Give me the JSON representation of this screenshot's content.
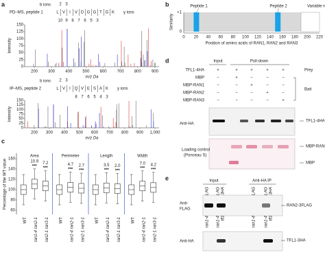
{
  "a": {
    "label": "a",
    "spectra": [
      {
        "title": "PD–MS, peptide 1",
        "b_ions_label": "b ions",
        "b_ions": [
          2,
          3
        ],
        "peptide": [
          "L",
          "V",
          "I",
          "V",
          "D",
          "G",
          "G",
          "T",
          "G",
          "K"
        ],
        "y_ions_label": "y ions",
        "y_ions": [
          10,
          9,
          8,
          7,
          6,
          5,
          3
        ],
        "ylabel": "Intensity",
        "yticks": [
          150,
          125,
          100,
          75,
          50,
          25,
          0
        ],
        "xticks": [
          200,
          300,
          400,
          500,
          600,
          700,
          800,
          900
        ],
        "xlabel": "m/z Da"
      },
      {
        "title": "IP–MS, peptide 2",
        "b_ions_label": "b ions",
        "b_ions": [
          2,
          3
        ],
        "peptide": [
          "L",
          "V",
          "I",
          "Q",
          "V",
          "E",
          "S",
          "A",
          "K"
        ],
        "y_ions_label": "y ions",
        "y_ions": [
          8,
          7,
          6,
          5,
          4,
          3
        ],
        "ylabel": "Intensity",
        "yticks": [
          150,
          125,
          100,
          75,
          50,
          25,
          0
        ],
        "xticks": [
          200,
          300,
          400,
          500,
          600,
          700,
          800,
          900,
          "1,000"
        ],
        "xlabel": "m/z Da"
      }
    ]
  },
  "b": {
    "label": "b",
    "ylabel": "Similarity",
    "yticks": [
      "+1",
      0
    ],
    "peptide1": "Peptide 1",
    "peptide2": "Peptide 2",
    "variable": "Variable region",
    "xticks": [
      0,
      20,
      40,
      60,
      80,
      100,
      120,
      140,
      160,
      180,
      200,
      220
    ],
    "xlabel": "Position of amino acids of RAN1, RAN2 and RAN3"
  },
  "c": {
    "label": "c",
    "ylabel": "Percentage of the WT value",
    "yticks": [
      160,
      140,
      120,
      100,
      80,
      60
    ],
    "groups": [
      {
        "name": "Area",
        "values": [
          "10.9",
          "7.2"
        ]
      },
      {
        "name": "Perimeter",
        "values": [
          "4.7",
          "2.7"
        ]
      },
      {
        "name": "Length",
        "values": [
          "3.5",
          "2.0"
        ]
      },
      {
        "name": "Width",
        "values": [
          "7.0",
          "4.2"
        ]
      }
    ],
    "stars": "***",
    "genotypes": [
      "WT",
      "ran1-4 ran2-1",
      "ran2-1 ran3-1"
    ]
  },
  "d": {
    "label": "d",
    "input": "Input",
    "pulldown": "Pull-down",
    "rows": [
      {
        "name": "TFL1-4HA",
        "signs": [
          "+",
          "+",
          "+",
          "+",
          "+"
        ]
      },
      {
        "name": "MBP",
        "signs": [
          "−",
          "+",
          "−",
          "−",
          "−"
        ]
      },
      {
        "name": "MBP-RAN1",
        "signs": [
          "−",
          "−",
          "+",
          "−",
          "−"
        ]
      },
      {
        "name": "MBP-RAN2",
        "signs": [
          "−",
          "−",
          "−",
          "+",
          "−"
        ]
      },
      {
        "name": "MBP-RAN3",
        "signs": [
          "−",
          "−",
          "−",
          "−",
          "+"
        ]
      }
    ],
    "prey": "Prey",
    "bait": "Bait",
    "blot1": "Anti-HA",
    "band1": "TFL1-4HA",
    "blot2": [
      "Loading control",
      "(Ponceau S)"
    ],
    "band2": "MBP-RAN",
    "band3": "MBP"
  },
  "e": {
    "label": "e",
    "input": "Input",
    "ip": "Anti-HA IP",
    "cols": [
      [
        "ran1-4 gRAN2-3FLAG"
      ],
      [
        "ran1-4 gRAN2-3FLAG",
        "tfl1-20 gTFL1-3HA"
      ],
      [
        "ran1-4 gRAN2-3FLAG"
      ],
      [
        "ran1-4 gRAN2-3FLAG",
        "tfl1-20 gTFL1-3HA"
      ]
    ],
    "blot1": [
      "Anti-",
      "FLAG"
    ],
    "band1": "RAN2-3FLAG",
    "blot2": "Anti-HA",
    "band2": "TFL1-3HA"
  }
}
